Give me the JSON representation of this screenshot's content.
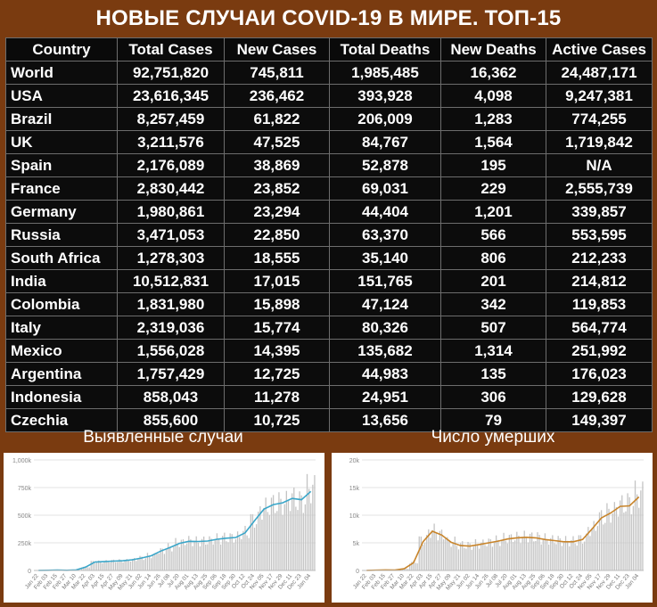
{
  "title": "НОВЫЕ СЛУЧАИ COVID-19 В МИРЕ. ТОП-15",
  "table": {
    "headers": [
      "Country",
      "Total Cases",
      "New Cases",
      "Total Deaths",
      "New Deaths",
      "Active Cases"
    ],
    "rows": [
      [
        "World",
        "92,751,820",
        "745,811",
        "1,985,485",
        "16,362",
        "24,487,171"
      ],
      [
        "USA",
        "23,616,345",
        "236,462",
        "393,928",
        "4,098",
        "9,247,381"
      ],
      [
        "Brazil",
        "8,257,459",
        "61,822",
        "206,009",
        "1,283",
        "774,255"
      ],
      [
        "UK",
        "3,211,576",
        "47,525",
        "84,767",
        "1,564",
        "1,719,842"
      ],
      [
        "Spain",
        "2,176,089",
        "38,869",
        "52,878",
        "195",
        "N/A"
      ],
      [
        "France",
        "2,830,442",
        "23,852",
        "69,031",
        "229",
        "2,555,739"
      ],
      [
        "Germany",
        "1,980,861",
        "23,294",
        "44,404",
        "1,201",
        "339,857"
      ],
      [
        "Russia",
        "3,471,053",
        "22,850",
        "63,370",
        "566",
        "553,595"
      ],
      [
        "South Africa",
        "1,278,303",
        "18,555",
        "35,140",
        "806",
        "212,233"
      ],
      [
        "India",
        "10,512,831",
        "17,015",
        "151,765",
        "201",
        "214,812"
      ],
      [
        "Colombia",
        "1,831,980",
        "15,898",
        "47,124",
        "342",
        "119,853"
      ],
      [
        "Italy",
        "2,319,036",
        "15,774",
        "80,326",
        "507",
        "564,774"
      ],
      [
        "Mexico",
        "1,556,028",
        "14,395",
        "135,682",
        "1,314",
        "251,992"
      ],
      [
        "Argentina",
        "1,757,429",
        "12,725",
        "44,983",
        "135",
        "176,023"
      ],
      [
        "Indonesia",
        "858,043",
        "11,278",
        "24,951",
        "306",
        "129,628"
      ],
      [
        "Czechia",
        "855,600",
        "10,725",
        "13,656",
        "79",
        "149,397"
      ]
    ]
  },
  "colors": {
    "background": "#7a3b10",
    "header_yellow": "#f2e64a",
    "header_red": "#f08c8c",
    "cases_line": "#3aa6c9",
    "deaths_line": "#c8842a",
    "bars": "#c4c4c4"
  },
  "chart_data": [
    {
      "type": "bar",
      "title": "Выявленные случаи",
      "ylim": [
        0,
        1000000
      ],
      "yticks": [
        "0",
        "250k",
        "500k",
        "750k",
        "1,000k"
      ],
      "ytick_values": [
        0,
        250000,
        500000,
        750000,
        1000000
      ],
      "xticks": [
        "Jan 22",
        "Feb 03",
        "Feb 15",
        "Feb 27",
        "Mar 10",
        "Mar 22",
        "Apr 03",
        "Apr 15",
        "Apr 27",
        "May 09",
        "May 21",
        "Jun 02",
        "Jun 14",
        "Jun 26",
        "Jul 08",
        "Jul 20",
        "Aug 01",
        "Aug 13",
        "Aug 25",
        "Sep 06",
        "Sep 18",
        "Sep 30",
        "Oct 12",
        "Oct 24",
        "Nov 05",
        "Nov 17",
        "Nov 29",
        "Dec 11",
        "Dec 23",
        "Jan 04"
      ],
      "series": [
        {
          "type": "bar",
          "values": [
            1000,
            2000,
            3000,
            2000,
            5000,
            32000,
            77000,
            80000,
            86000,
            88000,
            98000,
            115000,
            135000,
            178000,
            210000,
            250000,
            268000,
            262000,
            268000,
            285000,
            295000,
            300000,
            345000,
            455000,
            560000,
            600000,
            610000,
            650000,
            625000,
            740000
          ]
        },
        {
          "type": "line",
          "values": [
            1000,
            2000,
            3000,
            2000,
            5000,
            30000,
            76000,
            80000,
            85000,
            88000,
            97000,
            113000,
            133000,
            175000,
            208000,
            245000,
            264000,
            262000,
            266000,
            282000,
            292000,
            298000,
            340000,
            450000,
            555000,
            596000,
            612000,
            652000,
            640000,
            715000
          ]
        }
      ]
    },
    {
      "type": "bar",
      "title": "Число умерших",
      "ylim": [
        0,
        20000
      ],
      "yticks": [
        "0",
        "5k",
        "10k",
        "15k",
        "20k"
      ],
      "ytick_values": [
        0,
        5000,
        10000,
        15000,
        20000
      ],
      "xticks": [
        "Jan 22",
        "Feb 03",
        "Feb 15",
        "Feb 27",
        "Mar 10",
        "Mar 22",
        "Apr 03",
        "Apr 15",
        "Apr 27",
        "May 09",
        "May 21",
        "Jun 02",
        "Jun 14",
        "Jun 26",
        "Jul 08",
        "Jul 20",
        "Aug 01",
        "Aug 13",
        "Aug 25",
        "Sep 06",
        "Sep 18",
        "Sep 30",
        "Oct 12",
        "Oct 24",
        "Nov 05",
        "Nov 17",
        "Nov 29",
        "Dec 11",
        "Dec 23",
        "Jan 04"
      ],
      "series": [
        {
          "type": "bar",
          "values": [
            20,
            50,
            100,
            80,
            300,
            1500,
            5500,
            7200,
            6500,
            5200,
            4600,
            4500,
            4800,
            5100,
            5400,
            5800,
            6000,
            6100,
            6000,
            5700,
            5500,
            5300,
            5300,
            5700,
            7600,
            9600,
            10500,
            11800,
            12200,
            13800
          ]
        },
        {
          "type": "line",
          "values": [
            20,
            50,
            100,
            80,
            300,
            1400,
            5200,
            7100,
            6400,
            5100,
            4500,
            4400,
            4700,
            5000,
            5300,
            5700,
            5900,
            6000,
            5900,
            5600,
            5400,
            5200,
            5200,
            5600,
            7500,
            9500,
            10400,
            11600,
            11700,
            13300
          ]
        }
      ]
    }
  ]
}
